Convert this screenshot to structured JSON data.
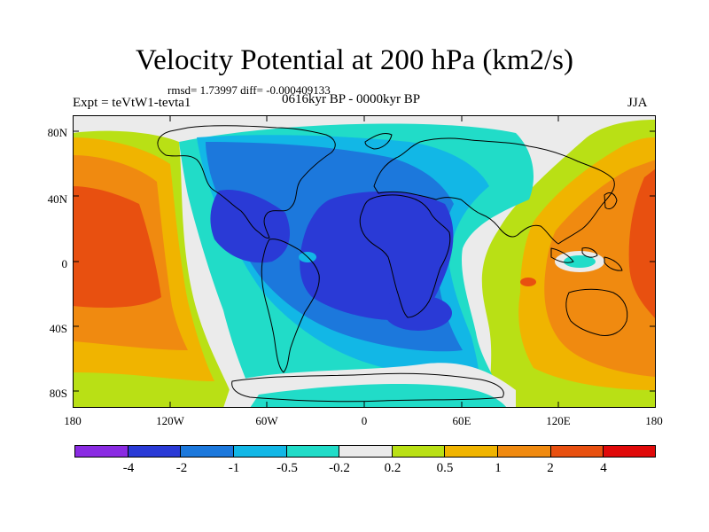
{
  "title": "Velocity Potential at 200 hPa (km2/s)",
  "stats": "rmsd= 1.73997 diff= -0.000409133",
  "experiment": "Expt = teVtW1-tevta1",
  "period": "0616kyr BP - 0000kyr BP",
  "season": "JJA",
  "map": {
    "projection": "cylindrical equidistant",
    "lon_range": [
      -180,
      180
    ],
    "lat_range": [
      -90,
      90
    ],
    "y_ticks": [
      "80N",
      "40N",
      "0",
      "40S",
      "80S"
    ],
    "x_ticks": [
      "180",
      "120W",
      "60W",
      "0",
      "60E",
      "120E",
      "180"
    ]
  },
  "colorbar": {
    "colors": [
      "#8a2be2",
      "#2a3ad6",
      "#1c78dc",
      "#12b7e6",
      "#21dcc8",
      "#ebebeb",
      "#b9e015",
      "#f0b400",
      "#f08a10",
      "#e85010",
      "#e00a0a"
    ],
    "labels": [
      "-4",
      "-2",
      "-1",
      "-0.5",
      "-0.2",
      "0.2",
      "0.5",
      "1",
      "2",
      "4"
    ]
  }
}
